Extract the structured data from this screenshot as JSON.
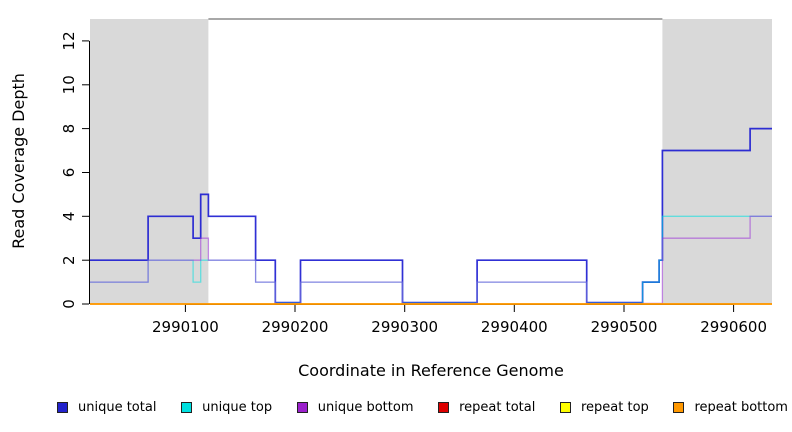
{
  "chart_data": {
    "type": "line",
    "title": "",
    "xlabel": "Coordinate in Reference Genome",
    "ylabel": "Read Coverage Depth",
    "xlim": [
      2990013,
      2990635
    ],
    "ylim": [
      0,
      13
    ],
    "xticks": [
      2990100,
      2990200,
      2990300,
      2990400,
      2990500,
      2990600
    ],
    "yticks": [
      0,
      2,
      4,
      6,
      8,
      10,
      12
    ],
    "grid": false,
    "legend_position": "bottom",
    "shade_color": "#d9d9d9",
    "shaded_regions": [
      [
        2990013,
        2990121
      ],
      [
        2990535,
        2990635
      ]
    ],
    "top_border": {
      "from": 2990121,
      "to": 2990535,
      "depth": 13,
      "color": "#8c8c8c"
    },
    "axis_color": "#000000",
    "series": [
      {
        "name": "unique total",
        "color": "#1a1ad0",
        "opacity": 0.9,
        "width": 1.7,
        "zero_lift": 1.4,
        "steps": [
          [
            2990013,
            2
          ],
          [
            2990066,
            4
          ],
          [
            2990107,
            3
          ],
          [
            2990114,
            5
          ],
          [
            2990121,
            4
          ],
          [
            2990164,
            2
          ],
          [
            2990182,
            0
          ],
          [
            2990205,
            2
          ],
          [
            2990298,
            0
          ],
          [
            2990366,
            2
          ],
          [
            2990466,
            0
          ],
          [
            2990517,
            1
          ],
          [
            2990532,
            2
          ],
          [
            2990535,
            7
          ],
          [
            2990615,
            8
          ]
        ]
      },
      {
        "name": "unique top",
        "color": "#00e0e0",
        "opacity": 0.55,
        "width": 1.3,
        "zero_lift": 1.0,
        "steps": [
          [
            2990013,
            1
          ],
          [
            2990066,
            2
          ],
          [
            2990107,
            1
          ],
          [
            2990114,
            2
          ],
          [
            2990164,
            1
          ],
          [
            2990182,
            0
          ],
          [
            2990205,
            1
          ],
          [
            2990298,
            0
          ],
          [
            2990366,
            1
          ],
          [
            2990466,
            0
          ],
          [
            2990517,
            1
          ],
          [
            2990532,
            2
          ],
          [
            2990535,
            4
          ]
        ]
      },
      {
        "name": "unique bottom",
        "color": "#9b30d8",
        "opacity": 0.55,
        "width": 1.3,
        "zero_lift": 0.6,
        "steps": [
          [
            2990013,
            1
          ],
          [
            2990066,
            2
          ],
          [
            2990114,
            3
          ],
          [
            2990121,
            2
          ],
          [
            2990164,
            1
          ],
          [
            2990182,
            0
          ],
          [
            2990205,
            1
          ],
          [
            2990298,
            0
          ],
          [
            2990366,
            1
          ],
          [
            2990466,
            0
          ],
          [
            2990535,
            3
          ],
          [
            2990615,
            4
          ]
        ]
      },
      {
        "name": "repeat total",
        "color": "#d00000",
        "opacity": 1,
        "width": 1.2,
        "zero_lift": 0,
        "steps": [
          [
            2990013,
            0
          ]
        ]
      },
      {
        "name": "repeat top",
        "color": "#ffff00",
        "opacity": 1,
        "width": 1.2,
        "zero_lift": 0,
        "steps": [
          [
            2990013,
            0
          ]
        ]
      },
      {
        "name": "repeat bottom",
        "color": "#ff9800",
        "opacity": 1,
        "width": 1.8,
        "zero_lift": 0,
        "steps": [
          [
            2990013,
            0
          ]
        ]
      }
    ]
  },
  "legend": {
    "items": [
      {
        "label": "unique total",
        "color": "#2222cc"
      },
      {
        "label": "unique top",
        "color": "#00e0e0"
      },
      {
        "label": "unique bottom",
        "color": "#9b20cc"
      },
      {
        "label": "repeat total",
        "color": "#dd0000"
      },
      {
        "label": "repeat top",
        "color": "#ffff00"
      },
      {
        "label": "repeat bottom",
        "color": "#ff9800"
      }
    ]
  }
}
